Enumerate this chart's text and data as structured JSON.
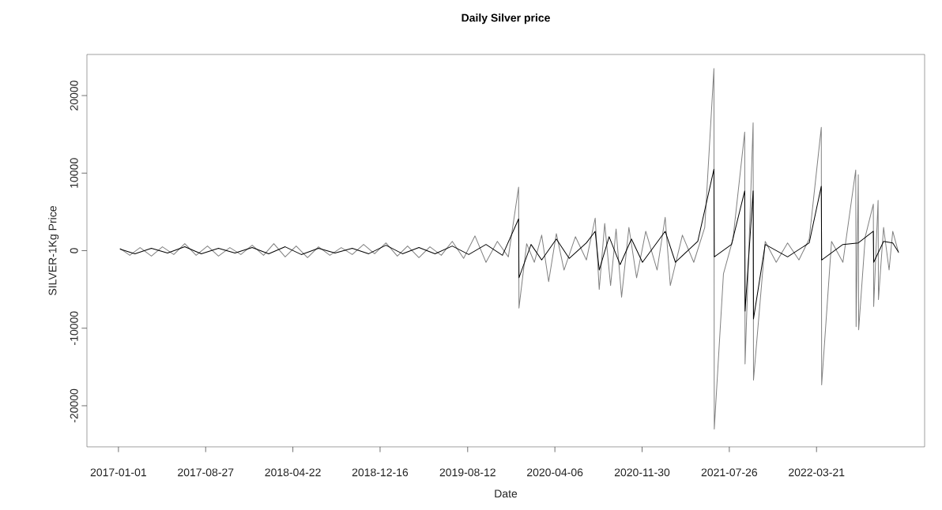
{
  "chart_data": {
    "type": "line",
    "title": "Daily Silver price",
    "xlabel": "Date",
    "ylabel": "SILVER-1Kg Price",
    "xlim": [
      "2016-10-07",
      "2023-01-10"
    ],
    "ylim": [
      -25300,
      25300
    ],
    "xticks": [
      "2017-01-01",
      "2017-08-27",
      "2018-04-22",
      "2018-12-16",
      "2019-08-12",
      "2020-04-06",
      "2020-11-30",
      "2021-07-26",
      "2022-03-21"
    ],
    "yticks": [
      -20000,
      -10000,
      0,
      10000,
      20000
    ],
    "series": [
      {
        "color": "#808080",
        "x": [
          "2017-01-05",
          "2017-02-01",
          "2017-03-01",
          "2017-04-01",
          "2017-05-01",
          "2017-06-01",
          "2017-07-01",
          "2017-08-01",
          "2017-09-01",
          "2017-10-01",
          "2017-11-01",
          "2017-12-01",
          "2018-01-01",
          "2018-02-01",
          "2018-03-01",
          "2018-04-01",
          "2018-05-01",
          "2018-06-01",
          "2018-07-01",
          "2018-08-01",
          "2018-09-01",
          "2018-10-01",
          "2018-11-01",
          "2018-12-01",
          "2019-01-01",
          "2019-02-01",
          "2019-03-01",
          "2019-04-01",
          "2019-05-01",
          "2019-06-01",
          "2019-07-01",
          "2019-08-01",
          "2019-09-01",
          "2019-10-01",
          "2019-11-01",
          "2019-12-01",
          "2019-12-29",
          "2019-12-30",
          "2020-01-20",
          "2020-02-10",
          "2020-03-01",
          "2020-03-20",
          "2020-04-10",
          "2020-05-01",
          "2020-06-01",
          "2020-07-01",
          "2020-07-25",
          "2020-08-05",
          "2020-08-20",
          "2020-09-05",
          "2020-09-20",
          "2020-10-05",
          "2020-10-25",
          "2020-11-15",
          "2020-12-10",
          "2021-01-10",
          "2021-02-01",
          "2021-02-15",
          "2021-03-20",
          "2021-04-20",
          "2021-05-20",
          "2021-06-14",
          "2021-06-15",
          "2021-07-10",
          "2021-08-05",
          "2021-09-06",
          "2021-09-07",
          "2021-09-29",
          "2021-09-30",
          "2021-11-01",
          "2021-12-01",
          "2022-01-01",
          "2022-02-01",
          "2022-03-01",
          "2022-04-03",
          "2022-04-04",
          "2022-05-01",
          "2022-06-01",
          "2022-07-06",
          "2022-07-07",
          "2022-07-13",
          "2022-07-14",
          "2022-08-01",
          "2022-08-23",
          "2022-08-24",
          "2022-09-05",
          "2022-09-06",
          "2022-09-20",
          "2022-10-05",
          "2022-10-15",
          "2022-10-31"
        ],
        "values": [
          300,
          -600,
          400,
          -700,
          500,
          -500,
          900,
          -600,
          600,
          -700,
          400,
          -500,
          700,
          -600,
          900,
          -800,
          600,
          -900,
          500,
          -600,
          400,
          -500,
          800,
          -400,
          1000,
          -700,
          600,
          -900,
          500,
          -600,
          1200,
          -1000,
          1900,
          -1500,
          1200,
          -800,
          8200,
          -7400,
          900,
          -1500,
          2000,
          -4000,
          2200,
          -2500,
          1800,
          -1200,
          4200,
          -5000,
          3500,
          -4500,
          2800,
          -6000,
          3000,
          -3500,
          2500,
          -2500,
          4300,
          -4500,
          2000,
          -1500,
          3000,
          23500,
          -23000,
          -3000,
          1500,
          15300,
          -14600,
          16500,
          -16700,
          1200,
          -1500,
          1000,
          -1200,
          1500,
          15900,
          -17300,
          1200,
          -1500,
          10400,
          -9800,
          9800,
          -10200,
          1800,
          6000,
          -7200,
          6500,
          -6300,
          3000,
          -2500,
          2500,
          -300
        ]
      },
      {
        "color": "#000000",
        "x": [
          "2017-01-05",
          "2017-02-15",
          "2017-04-01",
          "2017-05-15",
          "2017-07-01",
          "2017-08-15",
          "2017-10-01",
          "2017-11-15",
          "2018-01-01",
          "2018-02-15",
          "2018-04-01",
          "2018-05-15",
          "2018-07-01",
          "2018-08-15",
          "2018-10-01",
          "2018-11-15",
          "2019-01-01",
          "2019-02-15",
          "2019-04-01",
          "2019-05-15",
          "2019-07-01",
          "2019-08-15",
          "2019-10-01",
          "2019-11-15",
          "2019-12-29",
          "2019-12-30",
          "2020-02-01",
          "2020-03-01",
          "2020-04-10",
          "2020-05-15",
          "2020-07-01",
          "2020-07-25",
          "2020-08-05",
          "2020-09-01",
          "2020-10-01",
          "2020-11-01",
          "2020-12-01",
          "2021-02-01",
          "2021-03-01",
          "2021-05-01",
          "2021-06-14",
          "2021-06-15",
          "2021-08-01",
          "2021-09-06",
          "2021-09-07",
          "2021-09-29",
          "2021-09-30",
          "2021-11-01",
          "2022-01-01",
          "2022-03-01",
          "2022-04-03",
          "2022-04-04",
          "2022-06-01",
          "2022-07-13",
          "2022-08-23",
          "2022-08-24",
          "2022-09-20",
          "2022-10-15",
          "2022-10-31"
        ],
        "values": [
          200,
          -400,
          300,
          -300,
          500,
          -400,
          300,
          -300,
          400,
          -400,
          500,
          -500,
          300,
          -300,
          300,
          -400,
          700,
          -400,
          400,
          -400,
          600,
          -500,
          800,
          -600,
          4100,
          -3500,
          800,
          -1200,
          1500,
          -1000,
          1000,
          2500,
          -2500,
          1800,
          -1800,
          1500,
          -1500,
          2500,
          -1500,
          1200,
          10500,
          -800,
          800,
          7700,
          -7800,
          7700,
          -8800,
          800,
          -800,
          1000,
          8300,
          -1200,
          800,
          1000,
          2500,
          -1500,
          1200,
          1000,
          -200
        ]
      }
    ]
  }
}
